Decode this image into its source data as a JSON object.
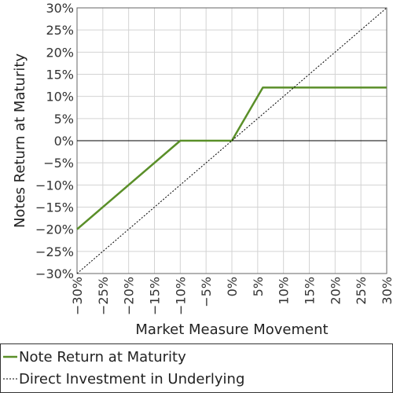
{
  "chart_data": {
    "type": "line",
    "title": "",
    "xlabel": "Market Measure Movement",
    "ylabel": "Notes Return at Maturity",
    "xlim": [
      -30,
      30
    ],
    "ylim": [
      -30,
      30
    ],
    "x_ticks": [
      -30,
      -25,
      -20,
      -15,
      -10,
      -5,
      0,
      5,
      10,
      15,
      20,
      25,
      30
    ],
    "y_ticks": [
      -30,
      -25,
      -20,
      -15,
      -10,
      -5,
      0,
      5,
      10,
      15,
      20,
      25,
      30
    ],
    "tick_suffix": "%",
    "grid": true,
    "legend_position": "bottom",
    "series": [
      {
        "name": "Note Return at Maturity",
        "style": "solid",
        "color": "#5a8f29",
        "points": [
          [
            -30,
            -20
          ],
          [
            -10,
            0
          ],
          [
            0,
            0
          ],
          [
            6,
            12
          ],
          [
            30,
            12
          ]
        ]
      },
      {
        "name": "Direct Investment in Underlying",
        "style": "dotted",
        "color": "#000000",
        "points": [
          [
            -30,
            -30
          ],
          [
            30,
            30
          ]
        ]
      }
    ]
  }
}
